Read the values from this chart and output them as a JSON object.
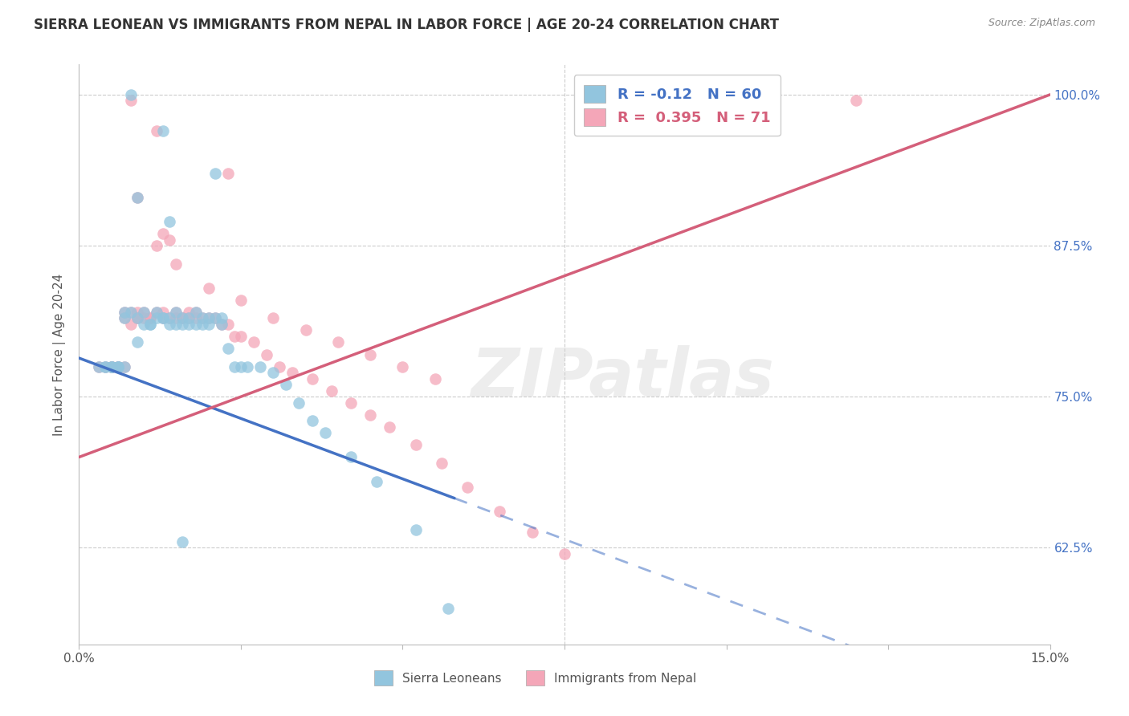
{
  "title": "SIERRA LEONEAN VS IMMIGRANTS FROM NEPAL IN LABOR FORCE | AGE 20-24 CORRELATION CHART",
  "source": "Source: ZipAtlas.com",
  "ylabel": "In Labor Force | Age 20-24",
  "xlim": [
    0.0,
    0.15
  ],
  "ylim": [
    0.545,
    1.025
  ],
  "yticks": [
    0.625,
    0.75,
    0.875,
    1.0
  ],
  "ytick_labels": [
    "62.5%",
    "75.0%",
    "87.5%",
    "100.0%"
  ],
  "xticks": [
    0.0,
    0.025,
    0.05,
    0.075,
    0.1,
    0.125,
    0.15
  ],
  "blue_R": -0.12,
  "blue_N": 60,
  "pink_R": 0.395,
  "pink_N": 71,
  "blue_scatter_color": "#92c5de",
  "pink_scatter_color": "#f4a6b8",
  "blue_line_color": "#4472c4",
  "pink_line_color": "#d45f7a",
  "legend_label_blue": "Sierra Leoneans",
  "legend_label_pink": "Immigrants from Nepal",
  "watermark": "ZIPatlas",
  "blue_x": [
    0.008,
    0.013,
    0.021,
    0.009,
    0.014,
    0.005,
    0.006,
    0.007,
    0.007,
    0.008,
    0.009,
    0.009,
    0.01,
    0.01,
    0.011,
    0.011,
    0.012,
    0.012,
    0.013,
    0.013,
    0.014,
    0.014,
    0.015,
    0.015,
    0.016,
    0.016,
    0.017,
    0.017,
    0.018,
    0.018,
    0.019,
    0.019,
    0.02,
    0.02,
    0.021,
    0.022,
    0.022,
    0.023,
    0.024,
    0.025,
    0.026,
    0.028,
    0.03,
    0.032,
    0.034,
    0.036,
    0.038,
    0.042,
    0.046,
    0.052,
    0.003,
    0.004,
    0.004,
    0.005,
    0.005,
    0.006,
    0.006,
    0.007,
    0.057,
    0.016
  ],
  "blue_y": [
    1.0,
    0.97,
    0.935,
    0.915,
    0.895,
    0.775,
    0.775,
    0.815,
    0.82,
    0.82,
    0.815,
    0.795,
    0.81,
    0.82,
    0.81,
    0.81,
    0.815,
    0.82,
    0.815,
    0.815,
    0.81,
    0.815,
    0.81,
    0.82,
    0.81,
    0.815,
    0.81,
    0.815,
    0.81,
    0.82,
    0.81,
    0.815,
    0.81,
    0.815,
    0.815,
    0.81,
    0.815,
    0.79,
    0.775,
    0.775,
    0.775,
    0.775,
    0.77,
    0.76,
    0.745,
    0.73,
    0.72,
    0.7,
    0.68,
    0.64,
    0.775,
    0.775,
    0.775,
    0.775,
    0.775,
    0.775,
    0.775,
    0.775,
    0.575,
    0.63
  ],
  "pink_x": [
    0.008,
    0.012,
    0.023,
    0.009,
    0.013,
    0.005,
    0.006,
    0.007,
    0.007,
    0.008,
    0.009,
    0.009,
    0.01,
    0.01,
    0.011,
    0.011,
    0.012,
    0.013,
    0.013,
    0.014,
    0.015,
    0.015,
    0.016,
    0.016,
    0.017,
    0.017,
    0.018,
    0.018,
    0.019,
    0.02,
    0.021,
    0.022,
    0.023,
    0.024,
    0.025,
    0.027,
    0.029,
    0.031,
    0.033,
    0.036,
    0.039,
    0.042,
    0.045,
    0.048,
    0.052,
    0.056,
    0.06,
    0.065,
    0.07,
    0.075,
    0.003,
    0.004,
    0.005,
    0.005,
    0.006,
    0.006,
    0.007,
    0.008,
    0.009,
    0.012,
    0.015,
    0.02,
    0.025,
    0.03,
    0.035,
    0.04,
    0.045,
    0.05,
    0.055,
    0.12,
    0.014
  ],
  "pink_y": [
    0.995,
    0.97,
    0.935,
    0.915,
    0.885,
    0.775,
    0.775,
    0.82,
    0.815,
    0.82,
    0.815,
    0.82,
    0.815,
    0.82,
    0.815,
    0.815,
    0.82,
    0.815,
    0.82,
    0.815,
    0.815,
    0.82,
    0.815,
    0.815,
    0.815,
    0.82,
    0.815,
    0.82,
    0.815,
    0.815,
    0.815,
    0.81,
    0.81,
    0.8,
    0.8,
    0.795,
    0.785,
    0.775,
    0.77,
    0.765,
    0.755,
    0.745,
    0.735,
    0.725,
    0.71,
    0.695,
    0.675,
    0.655,
    0.638,
    0.62,
    0.775,
    0.775,
    0.775,
    0.775,
    0.775,
    0.775,
    0.775,
    0.81,
    0.815,
    0.875,
    0.86,
    0.84,
    0.83,
    0.815,
    0.805,
    0.795,
    0.785,
    0.775,
    0.765,
    0.995,
    0.88
  ]
}
